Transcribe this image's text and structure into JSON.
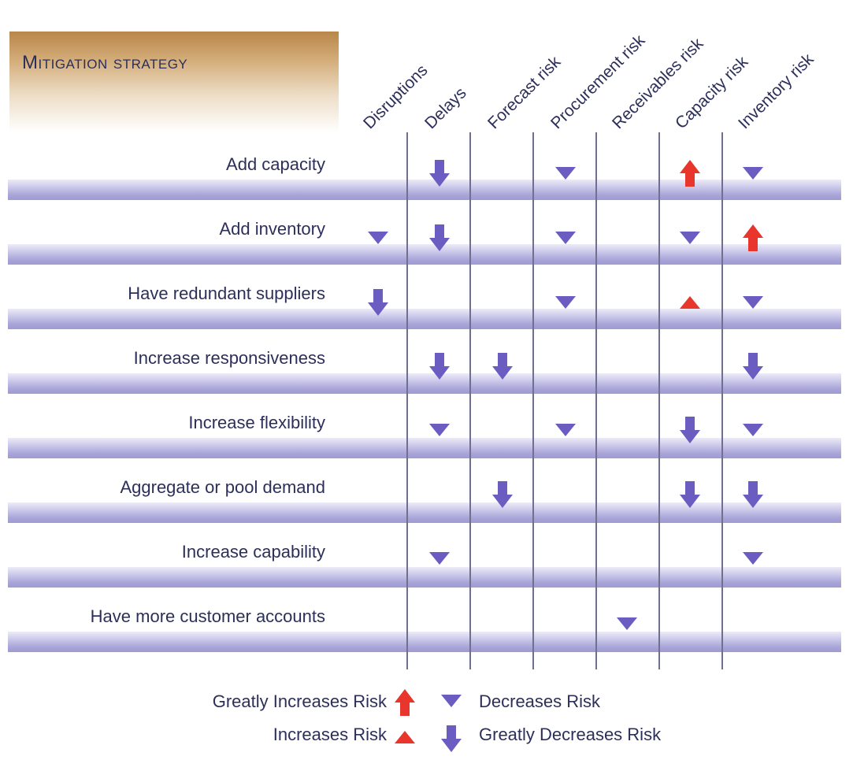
{
  "title": "Mitigation strategy",
  "columns": [
    "Disruptions",
    "Delays",
    "Forecast risk",
    "Procurement risk",
    "Receivables risk",
    "Capacity risk",
    "Inventory risk"
  ],
  "rows": [
    {
      "label": "Add capacity",
      "effects": [
        "",
        "greatly-decreases",
        "",
        "decreases",
        "",
        "greatly-increases",
        "decreases"
      ]
    },
    {
      "label": "Add inventory",
      "effects": [
        "decreases",
        "greatly-decreases",
        "",
        "decreases",
        "",
        "decreases",
        "greatly-increases"
      ]
    },
    {
      "label": "Have redundant suppliers",
      "effects": [
        "greatly-decreases",
        "",
        "",
        "decreases",
        "",
        "increases",
        "decreases"
      ]
    },
    {
      "label": "Increase responsiveness",
      "effects": [
        "",
        "greatly-decreases",
        "greatly-decreases",
        "",
        "",
        "",
        "greatly-decreases"
      ]
    },
    {
      "label": "Increase flexibility",
      "effects": [
        "",
        "decreases",
        "",
        "decreases",
        "",
        "greatly-decreases",
        "decreases"
      ]
    },
    {
      "label": "Aggregate or pool demand",
      "effects": [
        "",
        "",
        "greatly-decreases",
        "",
        "",
        "greatly-decreases",
        "greatly-decreases"
      ]
    },
    {
      "label": "Increase capability",
      "effects": [
        "",
        "decreases",
        "",
        "",
        "",
        "",
        "decreases"
      ]
    },
    {
      "label": "Have more customer accounts",
      "effects": [
        "",
        "",
        "",
        "",
        "decreases",
        "",
        ""
      ]
    }
  ],
  "legend": {
    "greatly_increases": "Greatly Increases Risk",
    "increases": "Increases Risk",
    "decreases": "Decreases Risk",
    "greatly_decreases": "Greatly Decreases Risk"
  },
  "colors": {
    "increase": "#e8362c",
    "decrease": "#6a5cc0",
    "text": "#2c2f5a",
    "title_bg": "#c89a5e"
  }
}
